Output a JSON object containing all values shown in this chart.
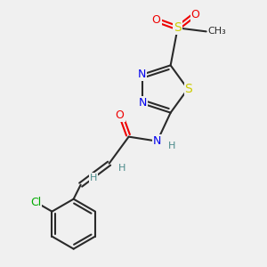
{
  "bg_color": "#f0f0f0",
  "bond_color": "#2a2a2a",
  "atom_colors": {
    "N": "#0000ee",
    "S": "#cccc00",
    "O": "#ee0000",
    "Cl": "#00aa00",
    "C": "#2a2a2a",
    "H": "#4a8a8a"
  },
  "figsize": [
    3.0,
    3.0
  ],
  "dpi": 100
}
